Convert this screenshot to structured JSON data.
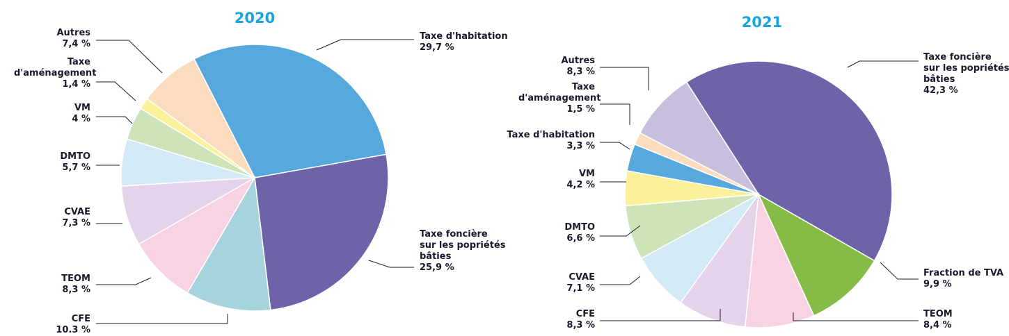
{
  "chart_data": [
    {
      "type": "pie",
      "title": "2020",
      "categories": [
        "Taxe d'habitation",
        "Taxe foncière sur les popriétés bâties",
        "CFE",
        "TEOM",
        "CVAE",
        "DMTO",
        "VM",
        "Taxe d'aménagement",
        "Autres"
      ],
      "values": [
        29.7,
        25.9,
        10.3,
        8.3,
        7.3,
        5.7,
        4,
        1.4,
        7.4
      ],
      "value_labels": [
        "29,7 %",
        "25,9 %",
        "10.3 %",
        "8,3 %",
        "7,3 %",
        "5,7 %",
        "4 %",
        "1,4 %",
        "7,4 %"
      ],
      "colors": [
        "#56a8dd",
        "#6e62a8",
        "#a6d3dc",
        "#f7d3e4",
        "#e4d3ea",
        "#d3e9f5",
        "#cde4b9",
        "#fbf19a",
        "#fbdcbf"
      ]
    },
    {
      "type": "pie",
      "title": "2021",
      "categories": [
        "Taxe foncière sur les popriétés bâties",
        "Fraction de TVA",
        "TEOM",
        "CFE",
        "CVAE",
        "DMTO",
        "VM",
        "Taxe d'habitation",
        "Taxe d'aménagement",
        "Autres"
      ],
      "values": [
        42.3,
        9.9,
        8.4,
        8.3,
        7.1,
        6.6,
        4.2,
        3.3,
        1.5,
        8.3
      ],
      "value_labels": [
        "42,3 %",
        "9,9 %",
        "8,4 %",
        "8,3 %",
        "7,1 %",
        "6,6 %",
        "4,2 %",
        "3,3 %",
        "1,5 %",
        "8,3 %"
      ],
      "colors": [
        "#6e62a8",
        "#86bb48",
        "#f7d3e4",
        "#e4d3ea",
        "#d3e9f5",
        "#cde4b9",
        "#fbf19a",
        "#56a8dd",
        "#fbdcbf",
        "#c8bedd"
      ]
    }
  ]
}
